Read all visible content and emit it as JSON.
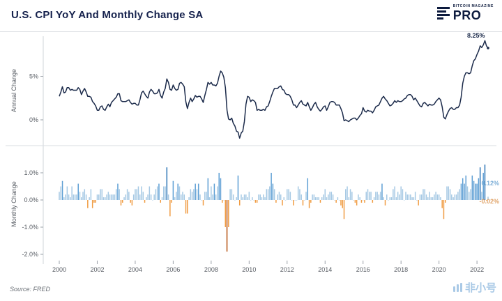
{
  "header": {
    "title": "U.S. CPI YoY And Monthly Change SA",
    "logo_small": "BITCOIN MAGAZINE",
    "logo_big": "PRO"
  },
  "source": "Source: FRED",
  "watermark": "非小号",
  "colors": {
    "line": "#1b2a4a",
    "bar_pos": "#a6c9e4",
    "bar_pos_mid": "#5e9fd4",
    "bar_pos_strong": "#2e75b6",
    "bar_neg": "#f09c43",
    "bar_neg_strong": "#b5520f",
    "annotation_annual": "#1b2a4a",
    "annotation_pos": "#7fb0d8",
    "annotation_neg": "#e0a46a"
  },
  "chart_data": {
    "type": "line+bar",
    "title": "U.S. CPI YoY And Monthly Change SA",
    "x_range": {
      "start": "2000-01",
      "end": "2022-08",
      "freq": "monthly"
    },
    "x_tick_years": [
      2000,
      2002,
      2004,
      2006,
      2008,
      2010,
      2012,
      2014,
      2016,
      2018,
      2020,
      2022
    ],
    "annotations": [
      {
        "text": "8.25%",
        "applies_to": "annual last value"
      },
      {
        "text": "0.12%",
        "applies_to": "monthly last positive value"
      },
      {
        "text": "-0.02%",
        "applies_to": "monthly last negative value"
      }
    ],
    "panels": [
      {
        "name": "annual",
        "type": "line",
        "ylabel": "Annual Change",
        "ylim": [
          -2.5,
          9.5
        ],
        "yticks": [
          {
            "v": 5,
            "label": "5%"
          },
          {
            "v": 0,
            "label": "0%"
          }
        ],
        "values": [
          2.7,
          3.2,
          3.8,
          3.1,
          3.2,
          3.7,
          3.7,
          3.4,
          3.5,
          3.4,
          3.4,
          3.4,
          3.7,
          3.5,
          2.9,
          3.3,
          3.6,
          3.2,
          2.7,
          2.7,
          2.6,
          2.1,
          1.9,
          1.6,
          1.1,
          1.1,
          1.5,
          1.6,
          1.2,
          1.1,
          1.5,
          1.8,
          1.5,
          2.0,
          2.2,
          2.4,
          2.6,
          3.0,
          3.0,
          2.2,
          2.1,
          2.1,
          2.1,
          2.2,
          2.3,
          2.0,
          1.8,
          1.9,
          1.9,
          1.7,
          1.7,
          2.3,
          3.1,
          3.3,
          3.0,
          2.7,
          2.5,
          3.2,
          3.5,
          3.3,
          3.0,
          3.0,
          3.1,
          3.5,
          2.8,
          2.5,
          3.2,
          3.6,
          4.7,
          4.3,
          3.5,
          3.4,
          4.0,
          3.6,
          3.4,
          3.5,
          4.2,
          4.3,
          4.1,
          3.8,
          2.1,
          1.3,
          2.0,
          2.5,
          2.1,
          2.4,
          2.8,
          2.6,
          2.7,
          2.7,
          2.4,
          2.0,
          2.8,
          3.5,
          4.3,
          4.1,
          4.3,
          4.0,
          4.0,
          3.9,
          4.2,
          5.0,
          5.6,
          5.4,
          4.9,
          3.7,
          1.1,
          0.1,
          0.0,
          0.2,
          -0.4,
          -0.7,
          -1.3,
          -1.4,
          -2.1,
          -1.5,
          -1.3,
          -0.2,
          1.8,
          2.7,
          2.6,
          2.1,
          2.3,
          2.2,
          2.0,
          1.1,
          1.2,
          1.1,
          1.1,
          1.2,
          1.1,
          1.5,
          1.6,
          2.1,
          2.7,
          3.2,
          3.6,
          3.6,
          3.6,
          3.8,
          3.9,
          3.5,
          3.4,
          3.0,
          2.9,
          2.9,
          2.7,
          2.3,
          1.7,
          1.7,
          1.4,
          1.7,
          2.0,
          2.2,
          1.8,
          1.7,
          1.6,
          2.0,
          1.5,
          1.1,
          1.4,
          1.8,
          2.0,
          1.5,
          1.2,
          1.0,
          1.2,
          1.5,
          1.6,
          1.1,
          1.5,
          2.0,
          2.1,
          2.1,
          2.0,
          1.7,
          1.7,
          1.7,
          1.3,
          0.8,
          -0.1,
          0.0,
          -0.1,
          -0.2,
          0.0,
          0.1,
          0.2,
          0.2,
          0.0,
          0.2,
          0.5,
          0.7,
          1.4,
          1.0,
          0.9,
          1.1,
          1.0,
          1.0,
          0.8,
          1.1,
          1.5,
          1.6,
          1.7,
          2.1,
          2.5,
          2.7,
          2.4,
          2.2,
          1.9,
          1.6,
          1.7,
          1.9,
          2.2,
          2.0,
          2.2,
          2.1,
          2.1,
          2.2,
          2.4,
          2.5,
          2.8,
          2.9,
          2.9,
          2.7,
          2.3,
          2.5,
          2.2,
          1.9,
          1.6,
          1.5,
          1.9,
          2.0,
          1.8,
          1.6,
          1.8,
          1.7,
          1.7,
          1.8,
          2.1,
          2.3,
          2.5,
          2.3,
          1.5,
          0.3,
          0.1,
          0.6,
          1.0,
          1.3,
          1.4,
          1.2,
          1.2,
          1.4,
          1.4,
          1.7,
          2.6,
          4.2,
          5.0,
          5.4,
          5.4,
          5.3,
          5.4,
          6.2,
          6.8,
          7.0,
          7.5,
          7.9,
          8.5,
          8.3,
          8.6,
          9.1,
          8.5,
          8.25
        ]
      },
      {
        "name": "monthly",
        "type": "bar",
        "ylabel": "Monthly Change",
        "ylim": [
          -2.1,
          1.9
        ],
        "yticks": [
          {
            "v": 1,
            "label": "1.0%"
          },
          {
            "v": 0,
            "label": "0.0%"
          },
          {
            "v": -1,
            "label": "-1.0%"
          },
          {
            "v": -2,
            "label": "-2.0%"
          }
        ],
        "values": [
          0.3,
          0.5,
          0.7,
          0.1,
          0.2,
          0.5,
          0.2,
          0.1,
          0.5,
          0.2,
          0.2,
          0.2,
          0.6,
          0.3,
          0.1,
          0.3,
          0.4,
          0.2,
          -0.3,
          0.1,
          0.4,
          -0.3,
          -0.1,
          -0.1,
          0.2,
          0.2,
          0.4,
          0.4,
          0.1,
          0.1,
          0.2,
          0.3,
          0.2,
          0.2,
          0.2,
          0.2,
          0.4,
          0.6,
          0.4,
          -0.2,
          -0.1,
          0.1,
          0.2,
          0.4,
          0.3,
          -0.1,
          -0.2,
          0.2,
          0.4,
          0.4,
          0.5,
          0.2,
          0.5,
          0.3,
          -0.1,
          0.1,
          0.2,
          0.5,
          0.2,
          0.0,
          0.2,
          0.4,
          0.5,
          0.6,
          -0.1,
          0.1,
          0.5,
          0.5,
          1.2,
          0.2,
          -0.6,
          -0.1,
          0.7,
          0.1,
          0.3,
          0.6,
          0.5,
          0.2,
          0.3,
          0.2,
          -0.5,
          -0.5,
          0.1,
          0.4,
          0.3,
          0.4,
          0.6,
          0.4,
          0.6,
          0.2,
          0.0,
          -0.2,
          0.3,
          0.3,
          0.8,
          0.1,
          0.5,
          0.2,
          0.6,
          0.2,
          0.5,
          1.0,
          0.8,
          -0.1,
          0.0,
          -1.0,
          -1.9,
          -1.0,
          0.4,
          0.4,
          0.2,
          0.0,
          0.1,
          0.9,
          -0.2,
          0.2,
          0.1,
          0.2,
          0.2,
          0.1,
          0.3,
          0.0,
          0.1,
          0.0,
          -0.1,
          -0.1,
          0.2,
          0.2,
          0.1,
          0.2,
          0.1,
          0.4,
          0.4,
          0.5,
          1.0,
          0.6,
          0.4,
          -0.1,
          0.2,
          0.3,
          0.2,
          -0.2,
          0.1,
          0.0,
          0.4,
          0.4,
          0.3,
          0.0,
          -0.2,
          0.0,
          0.0,
          0.5,
          0.4,
          0.2,
          -0.2,
          0.0,
          0.3,
          0.8,
          -0.3,
          -0.1,
          0.2,
          0.2,
          0.1,
          0.1,
          0.1,
          -0.1,
          0.1,
          0.2,
          0.4,
          0.1,
          0.2,
          0.3,
          0.3,
          0.2,
          0.0,
          -0.1,
          0.1,
          0.0,
          -0.2,
          -0.3,
          -0.7,
          0.4,
          0.5,
          0.1,
          0.4,
          0.3,
          0.0,
          -0.1,
          -0.2,
          0.2,
          0.1,
          -0.1,
          0.0,
          -0.1,
          0.3,
          0.4,
          0.3,
          0.3,
          -0.1,
          0.1,
          0.3,
          0.3,
          0.2,
          0.3,
          0.6,
          0.1,
          -0.2,
          0.2,
          0.0,
          0.1,
          0.1,
          0.4,
          0.5,
          0.1,
          0.3,
          0.2,
          0.5,
          0.4,
          0.0,
          0.3,
          0.2,
          0.2,
          0.2,
          0.1,
          0.1,
          0.3,
          0.0,
          -0.2,
          0.2,
          0.2,
          0.4,
          0.4,
          0.2,
          0.1,
          0.3,
          0.1,
          0.1,
          0.2,
          0.3,
          0.2,
          0.2,
          0.1,
          -0.3,
          -0.7,
          -0.1,
          0.5,
          0.5,
          0.4,
          0.2,
          0.1,
          0.2,
          0.2,
          0.3,
          0.4,
          0.6,
          0.8,
          0.6,
          0.9,
          0.5,
          0.3,
          0.4,
          0.9,
          0.7,
          0.6,
          0.6,
          0.8,
          1.2,
          0.3,
          1.0,
          1.3,
          -0.02,
          0.12
        ]
      }
    ]
  }
}
